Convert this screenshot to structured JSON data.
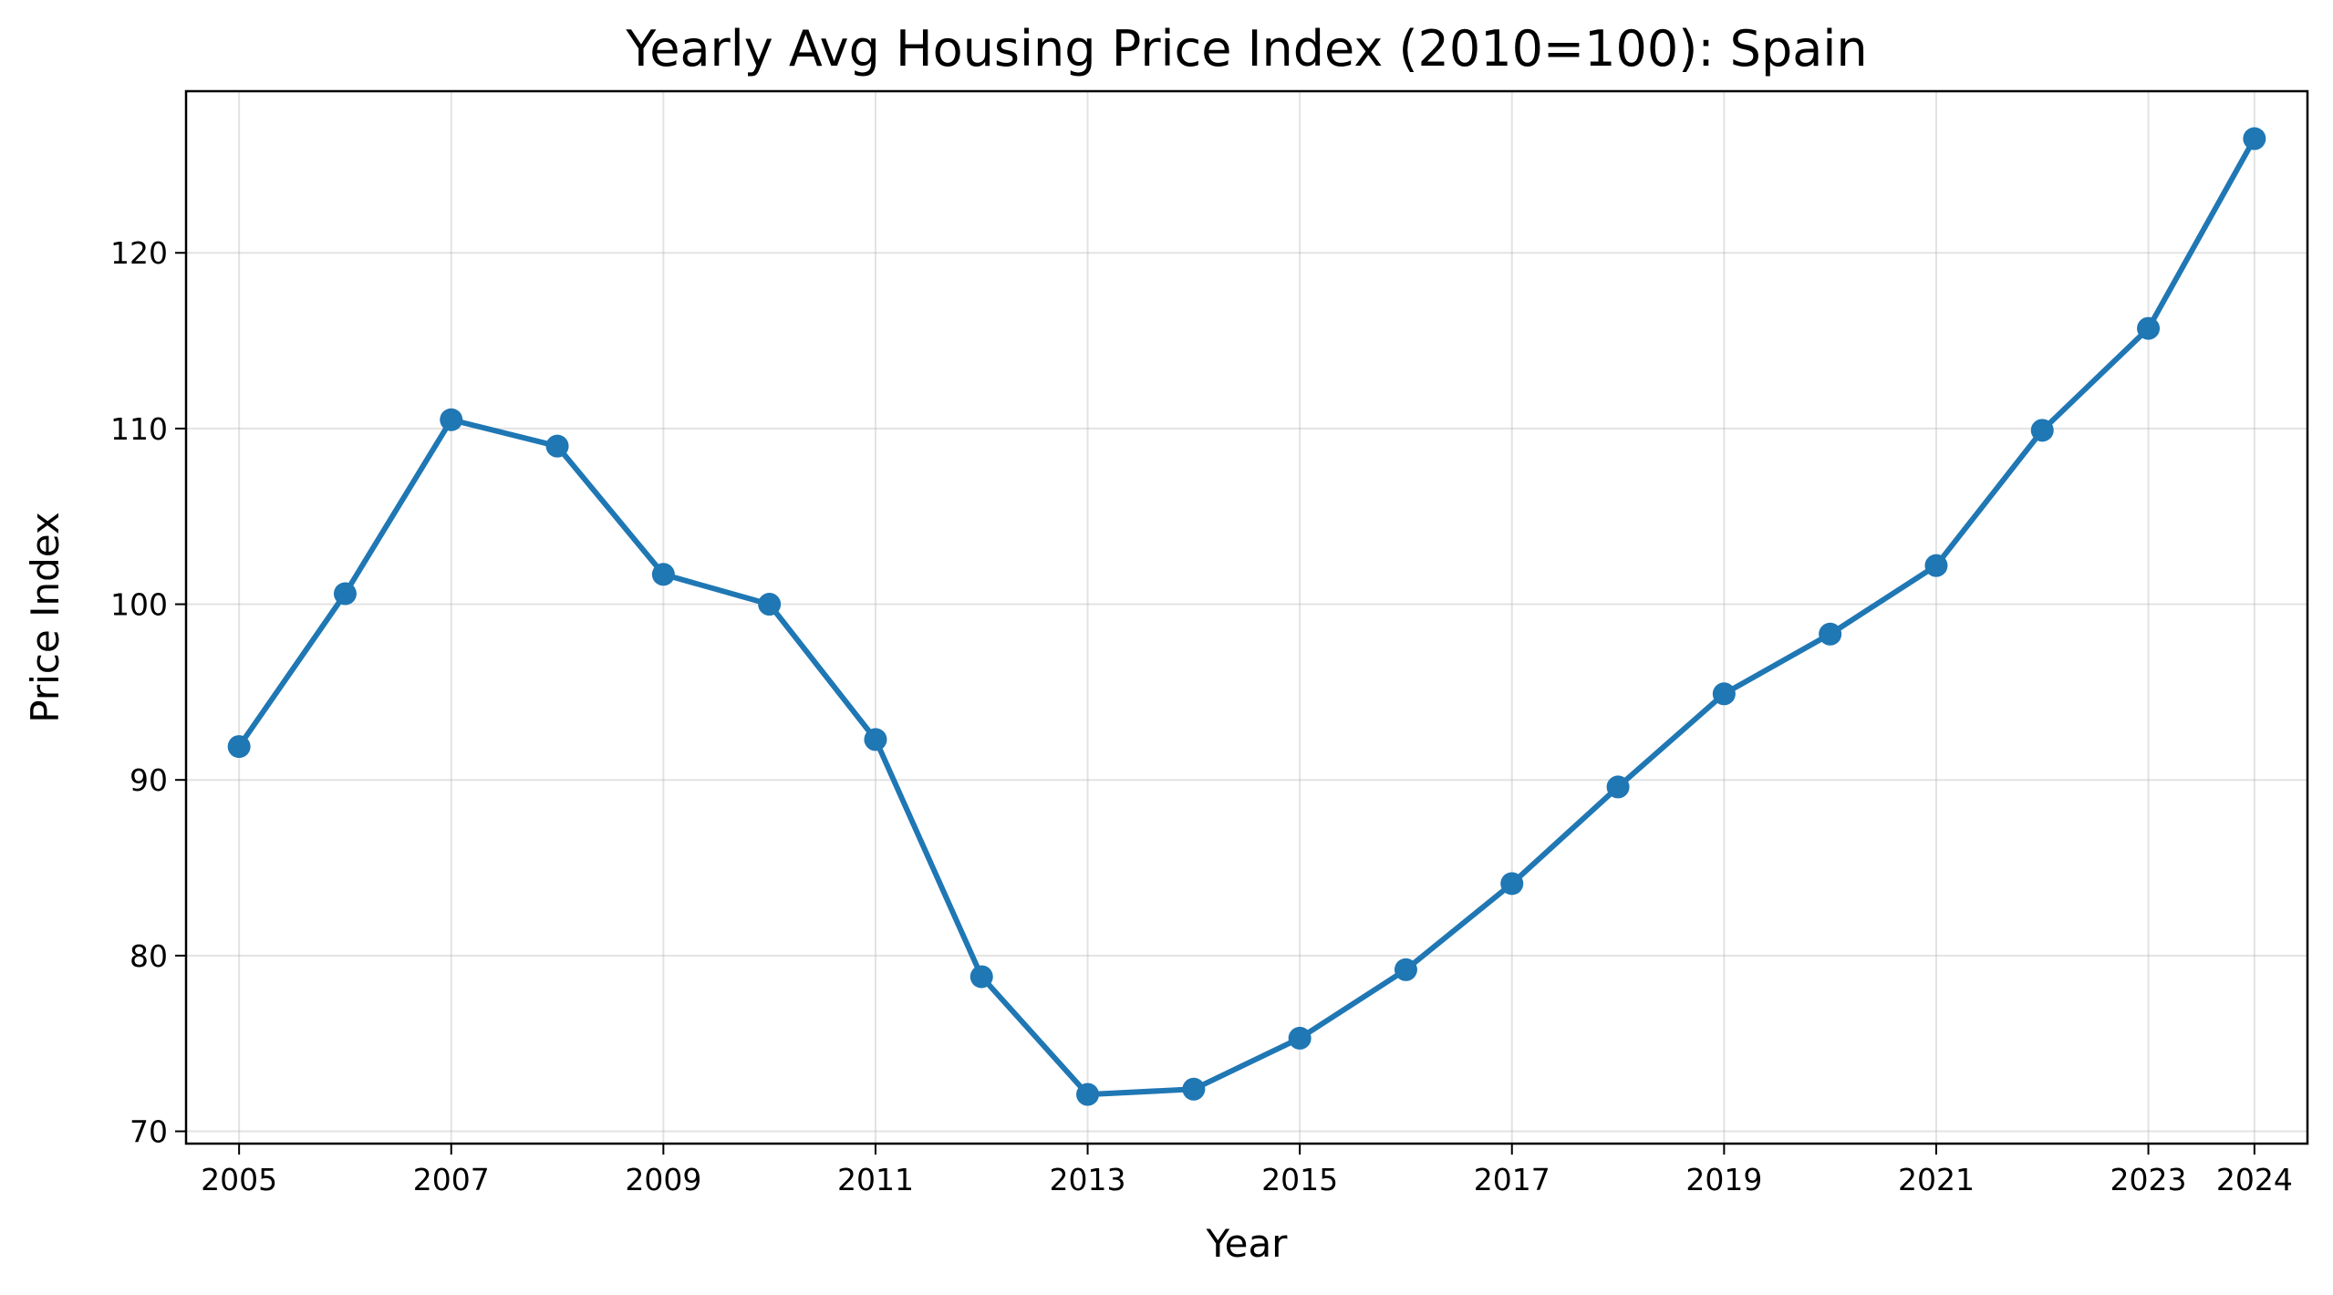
{
  "chart_data": {
    "type": "line",
    "title": "Yearly Avg Housing Price Index (2010=100): Spain",
    "xlabel": "Year",
    "ylabel": "Price Index",
    "x_ticks": [
      "2005",
      "2007",
      "2009",
      "2011",
      "2013",
      "2015",
      "2017",
      "2019",
      "2021",
      "2023",
      "2024"
    ],
    "y_ticks": [
      "70",
      "80",
      "90",
      "100",
      "110",
      "120"
    ],
    "xlim": [
      2004.5,
      2024.5
    ],
    "ylim": [
      69.3,
      129.2
    ],
    "grid": true,
    "legend": "none",
    "series": [
      {
        "color": "#1f77b4",
        "marker": "circle",
        "x": [
          2005,
          2006,
          2007,
          2008,
          2009,
          2010,
          2011,
          2012,
          2013,
          2014,
          2015,
          2016,
          2017,
          2018,
          2019,
          2020,
          2021,
          2022,
          2023,
          2024
        ],
        "y": [
          91.9,
          100.6,
          110.5,
          109.0,
          101.7,
          100.0,
          92.3,
          78.8,
          72.1,
          72.4,
          75.3,
          79.2,
          84.1,
          89.6,
          94.9,
          98.3,
          102.2,
          109.9,
          115.7,
          126.5
        ]
      }
    ]
  }
}
